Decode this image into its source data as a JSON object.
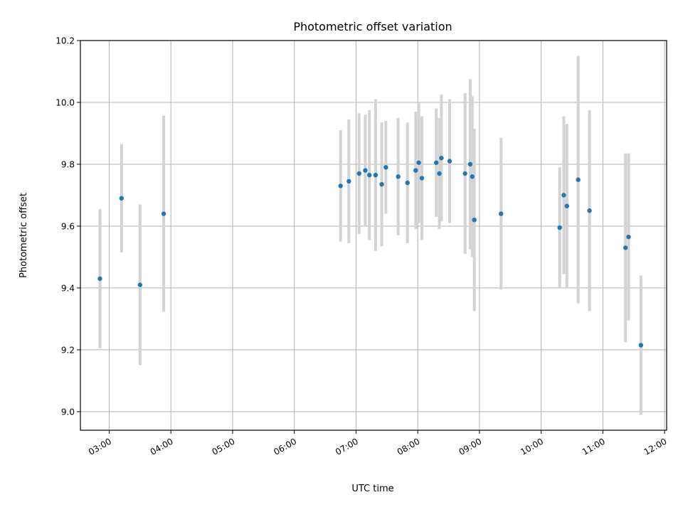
{
  "chart_data": {
    "type": "scatter",
    "title": "Photometric offset variation",
    "xlabel": "UTC time",
    "ylabel": "Photometric offset",
    "x_unit": "UTC time (HH:MM)",
    "xlim": [
      "02:32",
      "12:02"
    ],
    "ylim": [
      8.94,
      10.2
    ],
    "x_ticks": [
      "03:00",
      "04:00",
      "05:00",
      "06:00",
      "07:00",
      "08:00",
      "09:00",
      "10:00",
      "11:00",
      "12:00"
    ],
    "y_ticks": [
      "9.0",
      "9.2",
      "9.4",
      "9.6",
      "9.8",
      "10.0",
      "10.2"
    ],
    "grid": true,
    "point_color": "#1f77b4",
    "errorbar_color": "#d3d3d3",
    "points": [
      {
        "x": "02:51",
        "y": 9.43,
        "yerr": 0.225
      },
      {
        "x": "03:12",
        "y": 9.69,
        "yerr": 0.175
      },
      {
        "x": "03:30",
        "y": 9.41,
        "yerr": 0.26
      },
      {
        "x": "03:53",
        "y": 9.64,
        "yerr": 0.317
      },
      {
        "x": "06:45",
        "y": 9.73,
        "yerr": 0.18
      },
      {
        "x": "06:53",
        "y": 9.745,
        "yerr": 0.2
      },
      {
        "x": "07:03",
        "y": 9.77,
        "yerr": 0.195
      },
      {
        "x": "07:09",
        "y": 9.78,
        "yerr": 0.18
      },
      {
        "x": "07:13",
        "y": 9.765,
        "yerr": 0.21
      },
      {
        "x": "07:19",
        "y": 9.765,
        "yerr": 0.245
      },
      {
        "x": "07:25",
        "y": 9.735,
        "yerr": 0.2
      },
      {
        "x": "07:29",
        "y": 9.79,
        "yerr": 0.15
      },
      {
        "x": "07:41",
        "y": 9.76,
        "yerr": 0.19
      },
      {
        "x": "07:50",
        "y": 9.74,
        "yerr": 0.195
      },
      {
        "x": "07:58",
        "y": 9.78,
        "yerr": 0.19
      },
      {
        "x": "08:01",
        "y": 9.805,
        "yerr": 0.195
      },
      {
        "x": "08:04",
        "y": 9.755,
        "yerr": 0.2
      },
      {
        "x": "08:18",
        "y": 9.805,
        "yerr": 0.175
      },
      {
        "x": "08:21",
        "y": 9.77,
        "yerr": 0.18
      },
      {
        "x": "08:23",
        "y": 9.82,
        "yerr": 0.205
      },
      {
        "x": "08:31",
        "y": 9.81,
        "yerr": 0.2
      },
      {
        "x": "08:46",
        "y": 9.77,
        "yerr": 0.26
      },
      {
        "x": "08:51",
        "y": 9.8,
        "yerr": 0.275
      },
      {
        "x": "08:53",
        "y": 9.76,
        "yerr": 0.26
      },
      {
        "x": "08:55",
        "y": 9.62,
        "yerr": 0.295
      },
      {
        "x": "09:21",
        "y": 9.64,
        "yerr": 0.245
      },
      {
        "x": "10:18",
        "y": 9.595,
        "yerr": 0.195
      },
      {
        "x": "10:22",
        "y": 9.7,
        "yerr": 0.255
      },
      {
        "x": "10:25",
        "y": 9.665,
        "yerr": 0.265
      },
      {
        "x": "10:36",
        "y": 9.75,
        "yerr": 0.4
      },
      {
        "x": "10:47",
        "y": 9.65,
        "yerr": 0.325
      },
      {
        "x": "11:22",
        "y": 9.53,
        "yerr": 0.305
      },
      {
        "x": "11:25",
        "y": 9.565,
        "yerr": 0.27
      },
      {
        "x": "11:37",
        "y": 9.215,
        "yerr": 0.225
      }
    ]
  }
}
